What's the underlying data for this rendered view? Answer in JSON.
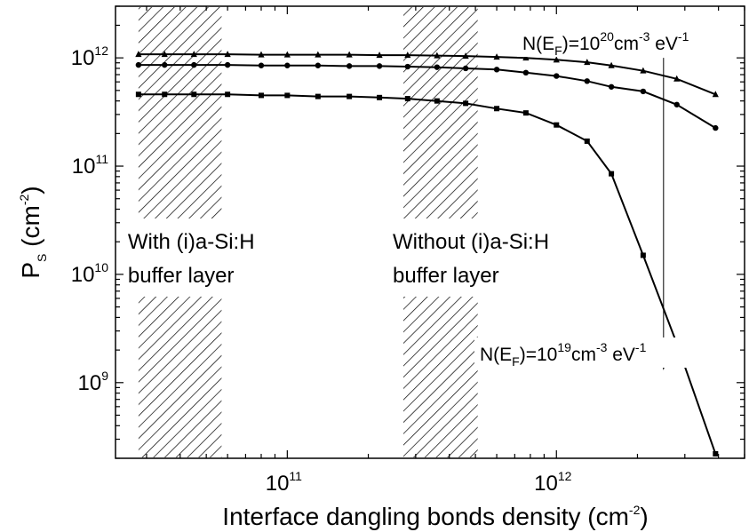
{
  "chart_data": {
    "type": "line",
    "x_axis": {
      "label": "Interface dangling bonds density",
      "unit": "(cm",
      "unit_exp": "-2",
      "unit_close": ")",
      "scale": "log",
      "range": [
        23000000000.0,
        5000000000000.0
      ],
      "ticks": [
        {
          "value": 100000000000.0,
          "base": "10",
          "exp": "11"
        },
        {
          "value": 1000000000000.0,
          "base": "10",
          "exp": "12"
        }
      ]
    },
    "y_axis": {
      "label": "P",
      "label_sub": "S",
      "unit": "(cm",
      "unit_exp": "-2",
      "unit_close": ")",
      "scale": "log",
      "range": [
        200000000.0,
        3000000000000.0
      ],
      "ticks": [
        {
          "value": 1000000000.0,
          "base": "10",
          "exp": "9"
        },
        {
          "value": 10000000000.0,
          "base": "10",
          "exp": "10"
        },
        {
          "value": 100000000000.0,
          "base": "10",
          "exp": "11"
        },
        {
          "value": 1000000000000.0,
          "base": "10",
          "exp": "12"
        }
      ]
    },
    "series": [
      {
        "marker": "triangle",
        "x": [
          28000000000.0,
          35000000000.0,
          45000000000.0,
          60000000000.0,
          80000000000.0,
          100000000000.0,
          130000000000.0,
          170000000000.0,
          220000000000.0,
          280000000000.0,
          360000000000.0,
          460000000000.0,
          600000000000.0,
          770000000000.0,
          1000000000000.0,
          1300000000000.0,
          1600000000000.0,
          2100000000000.0,
          2800000000000.0,
          3900000000000.0
        ],
        "y": [
          1080000000000.0,
          1080000000000.0,
          1080000000000.0,
          1080000000000.0,
          1070000000000.0,
          1070000000000.0,
          1070000000000.0,
          1070000000000.0,
          1060000000000.0,
          1060000000000.0,
          1050000000000.0,
          1040000000000.0,
          1020000000000.0,
          1000000000000.0,
          960000000000.0,
          910000000000.0,
          850000000000.0,
          760000000000.0,
          640000000000.0,
          460000000000.0
        ]
      },
      {
        "marker": "circle",
        "x": [
          28000000000.0,
          35000000000.0,
          45000000000.0,
          60000000000.0,
          80000000000.0,
          100000000000.0,
          130000000000.0,
          170000000000.0,
          220000000000.0,
          280000000000.0,
          360000000000.0,
          460000000000.0,
          600000000000.0,
          770000000000.0,
          1000000000000.0,
          1300000000000.0,
          1600000000000.0,
          2100000000000.0,
          2800000000000.0,
          3900000000000.0
        ],
        "y": [
          860000000000.0,
          860000000000.0,
          860000000000.0,
          860000000000.0,
          850000000000.0,
          850000000000.0,
          850000000000.0,
          840000000000.0,
          840000000000.0,
          830000000000.0,
          820000000000.0,
          800000000000.0,
          780000000000.0,
          730000000000.0,
          680000000000.0,
          610000000000.0,
          540000000000.0,
          490000000000.0,
          370000000000.0,
          225000000000.0
        ]
      },
      {
        "marker": "square",
        "x": [
          28000000000.0,
          35000000000.0,
          45000000000.0,
          60000000000.0,
          80000000000.0,
          100000000000.0,
          130000000000.0,
          170000000000.0,
          220000000000.0,
          280000000000.0,
          360000000000.0,
          460000000000.0,
          600000000000.0,
          770000000000.0,
          1000000000000.0,
          1300000000000.0,
          1600000000000.0,
          2100000000000.0,
          2800000000000.0,
          3900000000000.0
        ],
        "y": [
          460000000000.0,
          460000000000.0,
          460000000000.0,
          460000000000.0,
          450000000000.0,
          450000000000.0,
          440000000000.0,
          440000000000.0,
          430000000000.0,
          420000000000.0,
          400000000000.0,
          380000000000.0,
          340000000000.0,
          310000000000.0,
          240000000000.0,
          170000000000.0,
          85000000000.0,
          15000000000.0,
          2300000000.0,
          220000000.0
        ]
      }
    ],
    "regions": [
      {
        "x_range": [
          28000000000.0,
          57000000000.0
        ],
        "label_line1": "With (i)a-Si:H",
        "label_line2": "buffer layer"
      },
      {
        "x_range": [
          270000000000.0,
          510000000000.0
        ],
        "label_line1": "Without (i)a-Si:H",
        "label_line2": "buffer layer"
      }
    ],
    "annotations": [
      {
        "id": "top",
        "text_pre": "N(E",
        "text_sub": "F",
        "text_mid": ")=10",
        "exp1": "20",
        "text_mid2": "cm",
        "exp2": "-3",
        "text_mid3": " eV",
        "exp3": "-1",
        "x": 2500000000000.0,
        "y": 1580000000000.0
      },
      {
        "id": "bottom",
        "text_pre": "N(E",
        "text_sub": "F",
        "text_mid": ")=10",
        "exp1": "19",
        "text_mid2": "cm",
        "exp2": "-3",
        "text_mid3": " eV",
        "exp3": "-1",
        "x": 2500000000000.0,
        "y": 850000000.0
      }
    ],
    "arrow": {
      "x": 2500000000000.0,
      "y_from": 1000000000000.0,
      "y_to": 1300000000.0
    },
    "grid": false,
    "legend": "none"
  }
}
